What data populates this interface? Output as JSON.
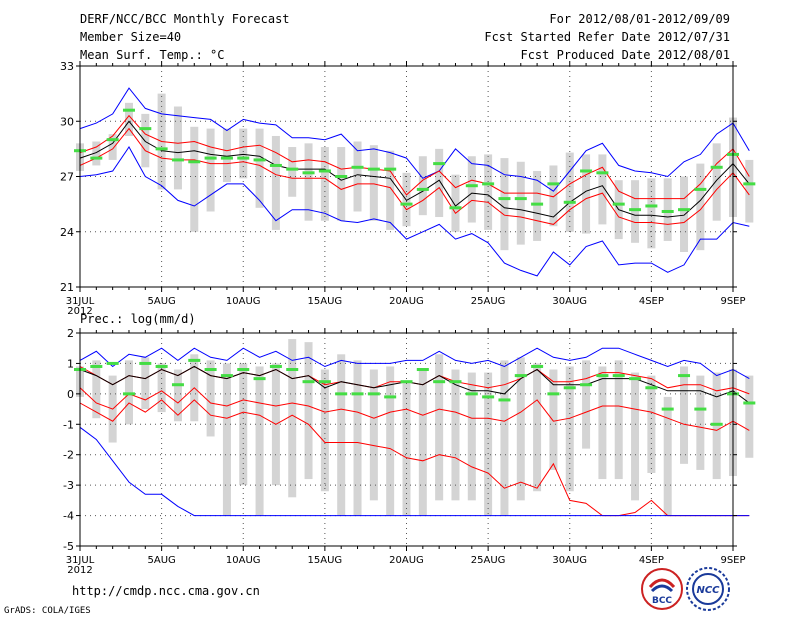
{
  "header": {
    "title": "DERF/NCC/BCC Monthly Forecast",
    "member_size": "Member Size=40",
    "variable": "Mean Surf. Temp.: °C",
    "period": "For 2012/08/01-2012/09/09",
    "started": "Fcst Started Refer Date 2012/07/31",
    "produced": "Fcst Produced Date 2012/08/01"
  },
  "footer": {
    "url": "http://cmdp.ncc.cma.gov.cn",
    "credit": "GrADS: COLA/IGES"
  },
  "logos": {
    "bcc": "BCC",
    "ncc": "NCC"
  },
  "colors": {
    "box": "#d4d4d4",
    "envelope": "#0000ff",
    "spread": "#ff0000",
    "mean": "#000000",
    "median": "#44dd44"
  },
  "chart_data": [
    {
      "type": "box-ensemble",
      "title": "Mean Surf. Temp.: °C",
      "ylim": [
        21,
        33
      ],
      "yticks": [
        21,
        24,
        27,
        30,
        33
      ],
      "xlim": [
        0,
        40
      ],
      "xticks": [
        0,
        5,
        10,
        15,
        20,
        25,
        30,
        35,
        40
      ],
      "xticklabels": [
        "31JUL",
        "5AUG",
        "10AUG",
        "15AUG",
        "20AUG",
        "25AUG",
        "30AUG",
        "4SEP",
        "9SEP"
      ],
      "xsub": "2012",
      "series": [
        {
          "name": "max",
          "values": [
            29.6,
            29.9,
            30.4,
            31.8,
            30.7,
            30.4,
            30.3,
            30.2,
            30.1,
            29.5,
            30.1,
            29.9,
            29.8,
            29.1,
            29.1,
            29.0,
            29.3,
            28.4,
            28.5,
            28.3,
            28.0,
            26.9,
            27.3,
            28.5,
            27.7,
            27.6,
            27.1,
            27.0,
            26.8,
            26.2,
            27.3,
            28.4,
            28.8,
            27.6,
            27.3,
            27.2,
            27.0,
            27.8,
            28.2,
            29.3,
            29.9,
            28.4
          ]
        },
        {
          "name": "upper",
          "values": [
            28.3,
            28.6,
            29.2,
            30.3,
            29.3,
            28.9,
            28.8,
            28.9,
            28.6,
            28.4,
            28.6,
            28.7,
            28.3,
            27.8,
            27.9,
            27.8,
            27.4,
            27.5,
            27.4,
            27.3,
            26.0,
            26.8,
            27.3,
            26.4,
            26.8,
            26.6,
            26.1,
            26.1,
            26.1,
            25.9,
            26.6,
            27.1,
            27.5,
            26.2,
            25.8,
            25.8,
            25.8,
            25.8,
            26.6,
            27.7,
            28.5,
            27.0
          ]
        },
        {
          "name": "mean",
          "values": [
            28.0,
            28.3,
            28.8,
            30.0,
            28.9,
            28.4,
            28.3,
            28.4,
            28.2,
            28.1,
            28.2,
            28.1,
            27.6,
            27.4,
            27.4,
            27.4,
            26.8,
            27.1,
            27.0,
            26.9,
            25.7,
            26.2,
            26.8,
            25.4,
            26.1,
            26.0,
            25.3,
            25.2,
            25.0,
            24.8,
            25.6,
            26.2,
            26.5,
            25.2,
            24.9,
            24.9,
            24.8,
            24.9,
            25.7,
            26.8,
            27.7,
            26.6
          ]
        },
        {
          "name": "lower",
          "values": [
            27.6,
            28.0,
            28.5,
            29.6,
            28.4,
            28.0,
            27.9,
            27.9,
            27.7,
            27.7,
            27.8,
            27.6,
            27.1,
            26.9,
            26.9,
            26.9,
            26.3,
            26.6,
            26.6,
            26.4,
            25.2,
            25.7,
            26.4,
            25.0,
            25.7,
            25.6,
            24.9,
            24.8,
            24.6,
            24.4,
            25.2,
            25.8,
            26.1,
            24.8,
            24.5,
            24.5,
            24.4,
            24.5,
            25.2,
            26.3,
            27.2,
            26.0
          ]
        },
        {
          "name": "min",
          "values": [
            27.0,
            27.1,
            27.3,
            28.6,
            27.0,
            26.5,
            25.7,
            25.4,
            26.0,
            26.6,
            26.6,
            25.7,
            24.6,
            25.2,
            25.2,
            25.0,
            24.6,
            24.5,
            24.7,
            24.5,
            23.6,
            24.0,
            24.4,
            23.6,
            23.9,
            23.4,
            22.3,
            21.9,
            21.6,
            22.9,
            22.2,
            23.2,
            23.5,
            22.2,
            22.3,
            22.3,
            21.8,
            22.2,
            23.6,
            23.6,
            24.5,
            24.3
          ]
        },
        {
          "name": "median",
          "values": [
            28.4,
            28.0,
            29.0,
            30.6,
            29.6,
            28.5,
            27.9,
            27.8,
            28.0,
            28.0,
            28.0,
            27.9,
            27.6,
            27.4,
            27.2,
            27.3,
            27.0,
            27.5,
            27.4,
            27.4,
            25.5,
            26.3,
            27.7,
            25.3,
            26.5,
            26.6,
            25.8,
            25.8,
            25.5,
            26.6,
            25.6,
            27.3,
            27.2,
            25.5,
            25.2,
            25.4,
            25.1,
            25.2,
            26.3,
            27.5,
            28.2,
            26.6
          ]
        },
        {
          "name": "box_top",
          "values": [
            28.8,
            28.9,
            29.3,
            31.0,
            30.4,
            31.5,
            30.8,
            29.7,
            29.6,
            29.6,
            29.6,
            29.6,
            29.2,
            28.6,
            28.8,
            28.6,
            28.6,
            28.9,
            28.7,
            28.4,
            27.2,
            28.1,
            28.5,
            27.1,
            28.1,
            28.2,
            28.0,
            27.8,
            27.3,
            27.6,
            28.3,
            28.2,
            28.2,
            26.8,
            26.8,
            26.9,
            26.9,
            27.0,
            27.7,
            28.8,
            30.2,
            27.9
          ]
        },
        {
          "name": "box_bottom",
          "values": [
            27.3,
            27.6,
            27.9,
            29.2,
            27.5,
            26.3,
            26.3,
            24.0,
            25.1,
            26.7,
            26.9,
            25.3,
            24.1,
            25.9,
            24.6,
            24.6,
            24.6,
            25.1,
            24.6,
            24.1,
            24.3,
            24.9,
            24.8,
            24.0,
            24.5,
            24.1,
            23.0,
            23.3,
            23.5,
            24.3,
            24.0,
            23.9,
            24.4,
            23.6,
            23.4,
            23.1,
            23.5,
            22.9,
            23.0,
            24.6,
            24.8,
            24.5
          ]
        }
      ]
    },
    {
      "type": "box-ensemble",
      "title": "Prec.: log(mm/d)",
      "ylim": [
        -5,
        2
      ],
      "yticks": [
        -5,
        -4,
        -3,
        -2,
        -1,
        0,
        1,
        2
      ],
      "xlim": [
        0,
        40
      ],
      "xticks": [
        0,
        5,
        10,
        15,
        20,
        25,
        30,
        35,
        40
      ],
      "xticklabels": [
        "31JUL",
        "5AUG",
        "10AUG",
        "15AUG",
        "20AUG",
        "25AUG",
        "30AUG",
        "4SEP",
        "9SEP"
      ],
      "xsub": "2012",
      "series": [
        {
          "name": "max",
          "values": [
            1.1,
            1.4,
            0.9,
            1.3,
            1.2,
            1.5,
            1.1,
            1.5,
            1.2,
            1.1,
            1.5,
            1.2,
            1.4,
            1.1,
            1.2,
            0.9,
            1.1,
            1.0,
            1.0,
            1.0,
            1.1,
            1.1,
            1.4,
            1.1,
            1.0,
            1.1,
            0.9,
            1.2,
            1.5,
            1.2,
            1.1,
            1.2,
            1.5,
            1.5,
            1.3,
            1.1,
            0.9,
            1.1,
            1.0,
            0.6,
            0.8,
            0.5
          ]
        },
        {
          "name": "upper",
          "values": [
            0.9,
            0.6,
            0.3,
            0.6,
            0.5,
            0.8,
            0.6,
            0.9,
            0.6,
            0.5,
            0.7,
            0.6,
            0.8,
            0.5,
            0.6,
            0.3,
            0.4,
            0.3,
            0.2,
            0.4,
            0.4,
            0.3,
            0.6,
            0.4,
            0.3,
            0.2,
            0.3,
            0.5,
            0.8,
            0.4,
            0.4,
            0.5,
            0.7,
            0.7,
            0.6,
            0.5,
            0.2,
            0.3,
            0.3,
            0.1,
            0.2,
            0.0
          ]
        },
        {
          "name": "mean",
          "values": [
            0.8,
            0.6,
            0.3,
            0.6,
            0.5,
            0.8,
            0.6,
            0.9,
            0.6,
            0.5,
            0.7,
            0.6,
            0.8,
            0.5,
            0.6,
            0.2,
            0.4,
            0.3,
            0.2,
            0.3,
            0.4,
            0.3,
            0.6,
            0.3,
            0.1,
            0.1,
            0.0,
            0.5,
            0.8,
            0.3,
            0.3,
            0.3,
            0.5,
            0.5,
            0.5,
            0.3,
            0.1,
            0.1,
            0.1,
            -0.1,
            0.1,
            -0.3
          ]
        },
        {
          "name": "lower",
          "values": [
            0.2,
            -0.3,
            -0.5,
            0.0,
            -0.2,
            0.1,
            -0.3,
            0.2,
            -0.3,
            -0.4,
            -0.2,
            -0.3,
            -0.4,
            -0.3,
            -0.4,
            -0.6,
            -0.5,
            -0.6,
            -0.8,
            -0.6,
            -0.5,
            -0.7,
            -0.5,
            -0.6,
            -0.8,
            -0.8,
            -0.9,
            -0.6,
            -0.2,
            -0.9,
            -0.8,
            -0.6,
            -0.4,
            -0.4,
            -0.5,
            -0.6,
            -0.8,
            -1.0,
            -1.1,
            -1.2,
            -0.9,
            -1.2
          ]
        },
        {
          "name": "lower2",
          "values": [
            -0.3,
            -0.6,
            -0.9,
            -0.3,
            -0.6,
            -0.2,
            -0.7,
            -0.2,
            -0.7,
            -0.8,
            -0.6,
            -0.7,
            -1.0,
            -0.7,
            -1.0,
            -1.6,
            -1.6,
            -1.6,
            -1.7,
            -1.8,
            -2.1,
            -2.2,
            -2.0,
            -2.1,
            -2.4,
            -2.6,
            -3.1,
            -2.9,
            -3.1,
            -2.3,
            -3.5,
            -3.6,
            -4.0,
            -4.0,
            -3.9,
            -3.5,
            -4.0,
            -4.0,
            -4.0,
            -4.0,
            -4.0,
            -4.0
          ]
        },
        {
          "name": "min",
          "values": [
            -1.1,
            -1.5,
            -2.2,
            -2.9,
            -3.3,
            -3.3,
            -3.7,
            -4.0,
            -4.0,
            -4.0,
            -4.0,
            -4.0,
            -4.0,
            -4.0,
            -4.0,
            -4.0,
            -4.0,
            -4.0,
            -4.0,
            -4.0,
            -4.0,
            -4.0,
            -4.0,
            -4.0,
            -4.0,
            -4.0,
            -4.0,
            -4.0,
            -4.0,
            -4.0,
            -4.0,
            -4.0,
            -4.0,
            -4.0,
            -4.0,
            -4.0,
            -4.0,
            -4.0,
            -4.0,
            -4.0,
            -4.0,
            -4.0
          ]
        },
        {
          "name": "median",
          "values": [
            0.8,
            0.9,
            1.0,
            0.0,
            1.0,
            0.9,
            0.3,
            1.1,
            0.8,
            0.6,
            0.8,
            0.5,
            0.9,
            0.8,
            0.4,
            0.4,
            0.0,
            0.0,
            0.0,
            -0.1,
            0.4,
            0.8,
            0.4,
            0.4,
            0.0,
            -0.1,
            -0.2,
            0.6,
            0.9,
            0.0,
            0.2,
            0.3,
            0.6,
            0.6,
            0.5,
            0.2,
            -0.5,
            0.6,
            -0.5,
            -1.0,
            0.0,
            -0.3
          ]
        },
        {
          "name": "box_top",
          "values": [
            0.9,
            1.1,
            0.6,
            1.1,
            1.2,
            1.0,
            0.8,
            1.3,
            1.1,
            1.0,
            1.0,
            0.9,
            1.0,
            1.8,
            1.7,
            0.8,
            1.3,
            1.1,
            0.8,
            0.9,
            0.4,
            0.8,
            1.3,
            0.8,
            0.7,
            0.7,
            1.1,
            1.2,
            1.0,
            0.8,
            0.9,
            1.1,
            0.9,
            1.1,
            0.7,
            0.6,
            -0.1,
            0.9,
            0.6,
            0.7,
            0.8,
            0.6
          ]
        },
        {
          "name": "box_bottom",
          "values": [
            -0.1,
            -0.8,
            -1.6,
            -1.0,
            -0.5,
            -0.6,
            -0.9,
            -0.9,
            -1.4,
            -4.0,
            -3.0,
            -4.0,
            -3.0,
            -3.4,
            -2.8,
            -3.2,
            -4.0,
            -4.0,
            -3.5,
            -4.0,
            -4.0,
            -4.0,
            -3.5,
            -3.5,
            -3.5,
            -4.0,
            -4.0,
            -3.5,
            -3.2,
            -2.5,
            -3.2,
            -1.8,
            -2.8,
            -2.8,
            -3.5,
            -2.6,
            -4.0,
            -2.3,
            -2.5,
            -2.8,
            -2.7,
            -2.1
          ]
        }
      ]
    }
  ]
}
